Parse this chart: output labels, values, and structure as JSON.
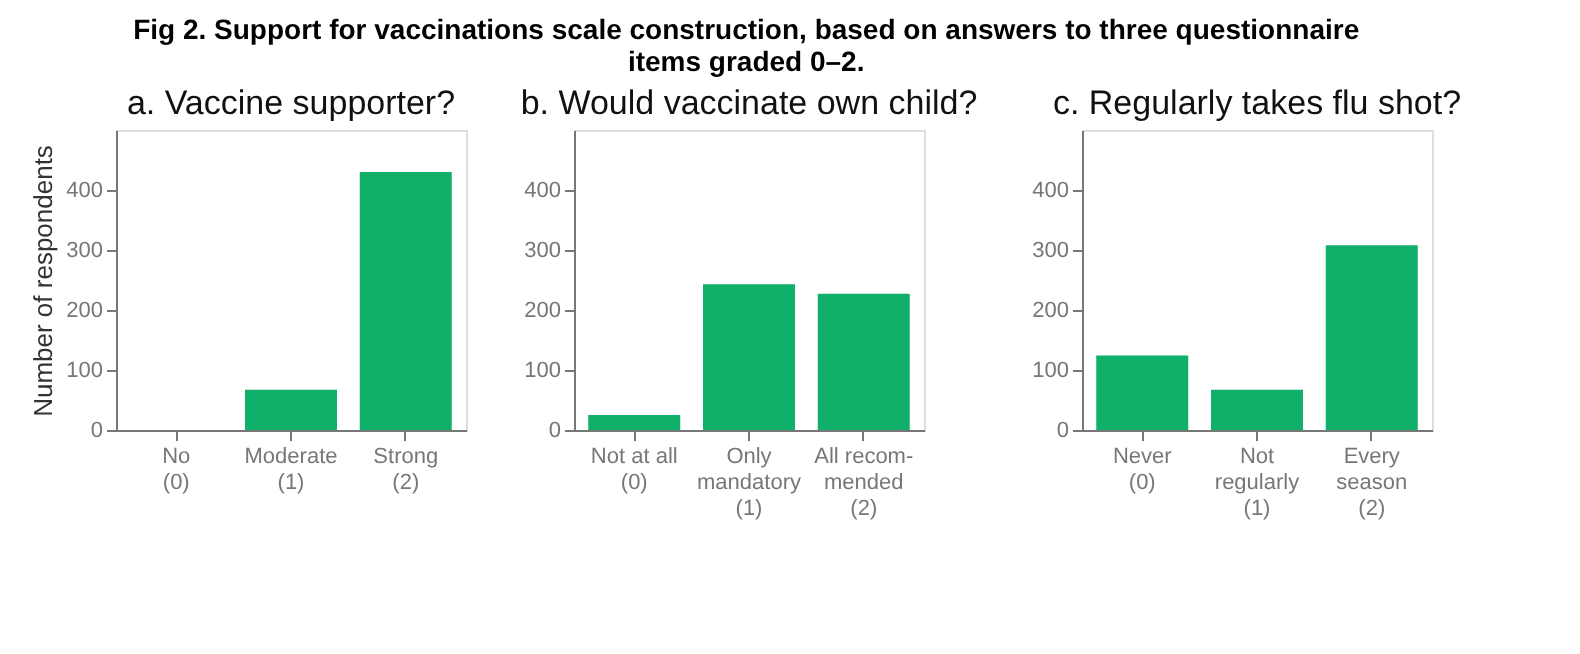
{
  "chart_data": [
    {
      "type": "bar",
      "title": "a. Vaccine supporter?",
      "ylabel": "Number of respondents",
      "annotations": [
        "Fig 2. Support for vaccinations scale construction, based on answers to three questionnaire items graded 0–2."
      ],
      "categories": [
        "No\n(0)",
        "Moderate\n(1)",
        "Strong\n(2)"
      ],
      "values": [
        0,
        67,
        430
      ],
      "color": "#10b06a",
      "ylim": [
        0,
        500
      ],
      "yticks": [
        0,
        100,
        200,
        300,
        400
      ],
      "grid": false
    },
    {
      "type": "bar",
      "title": "b. Would vaccinate own child?",
      "categories": [
        "Not at all\n(0)",
        "Only\nmandatory\n(1)",
        "All recom-\nmended\n(2)"
      ],
      "values": [
        25,
        243,
        227
      ],
      "color": "#10b06a",
      "ylim": [
        0,
        500
      ],
      "yticks": [
        0,
        100,
        200,
        300,
        400
      ],
      "grid": false
    },
    {
      "type": "bar",
      "title": "c. Regularly takes flu shot?",
      "categories": [
        "Never\n(0)",
        "Not\nregularly\n(1)",
        "Every\nseason\n(2)"
      ],
      "values": [
        124,
        67,
        308
      ],
      "color": "#10b06a",
      "ylim": [
        0,
        500
      ],
      "yticks": [
        0,
        100,
        200,
        300,
        400
      ],
      "grid": false
    }
  ]
}
